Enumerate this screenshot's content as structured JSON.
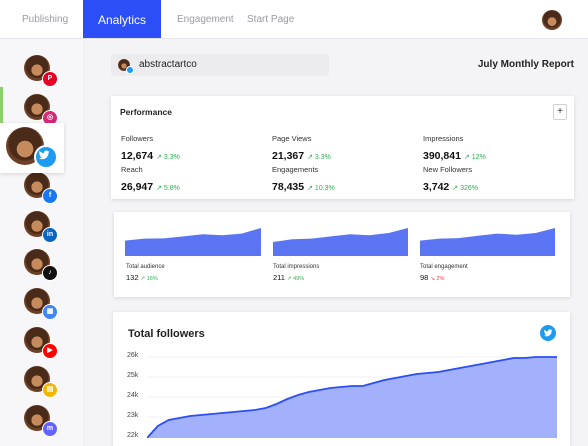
{
  "nav": {
    "tabs": [
      {
        "label": "Publishing",
        "active": false
      },
      {
        "label": "Analytics",
        "active": true
      },
      {
        "label": "Engagement",
        "active": false
      },
      {
        "label": "Start Page",
        "active": false
      }
    ]
  },
  "sidebar": {
    "accounts": [
      {
        "network": "pinterest",
        "icon": "pinterest-icon",
        "color": "#e60023",
        "glyph": "P"
      },
      {
        "network": "instagram",
        "icon": "instagram-icon",
        "color": "#d62976",
        "glyph": "◎"
      },
      {
        "network": "twitter",
        "icon": "twitter-icon",
        "color": "#1d9bf0",
        "glyph": "",
        "selected": true
      },
      {
        "network": "facebook",
        "icon": "facebook-icon",
        "color": "#1877f2",
        "glyph": "f"
      },
      {
        "network": "linkedin",
        "icon": "linkedin-icon",
        "color": "#0a66c2",
        "glyph": "in"
      },
      {
        "network": "tiktok",
        "icon": "tiktok-icon",
        "color": "#111111",
        "glyph": "♪"
      },
      {
        "network": "google-business",
        "icon": "google-business-icon",
        "color": "#4285f4",
        "glyph": "▦"
      },
      {
        "network": "youtube",
        "icon": "youtube-icon",
        "color": "#ff0000",
        "glyph": "▶"
      },
      {
        "network": "shopify",
        "icon": "shopify-icon",
        "color": "#f2b705",
        "glyph": "▤"
      },
      {
        "network": "mastodon",
        "icon": "mastodon-icon",
        "color": "#6364ff",
        "glyph": "m"
      }
    ]
  },
  "profile": {
    "name": "abstractartco"
  },
  "report": {
    "title": "July Monthly Report"
  },
  "performance": {
    "title": "Performance",
    "add_label": "+",
    "metrics": [
      {
        "label": "Followers",
        "value": "12,674",
        "change": "↗ 3.3%"
      },
      {
        "label": "Page Views",
        "value": "21,367",
        "change": "↗ 3.3%"
      },
      {
        "label": "Impressions",
        "value": "390,841",
        "change": "↗ 12%"
      },
      {
        "label": "Reach",
        "value": "26,947",
        "change": "↗ 5.8%"
      },
      {
        "label": "Engagements",
        "value": "78,435",
        "change": "↗ 10.3%"
      },
      {
        "label": "New Followers",
        "value": "3,742",
        "change": "↗ 326%"
      }
    ]
  },
  "mini_charts": [
    {
      "label": "Total audience",
      "value": "132",
      "change": "↗ 16%",
      "trend": "up",
      "points": [
        0.55,
        0.62,
        0.63,
        0.7,
        0.78,
        0.74,
        0.8,
        1.0
      ]
    },
    {
      "label": "Total impressions",
      "value": "211",
      "change": "↗ 49%",
      "trend": "up",
      "points": [
        0.5,
        0.6,
        0.62,
        0.7,
        0.78,
        0.74,
        0.82,
        1.0
      ]
    },
    {
      "label": "Total engagement",
      "value": "98",
      "change": "↘ 2%",
      "trend": "down",
      "points": [
        0.55,
        0.62,
        0.64,
        0.72,
        0.8,
        0.76,
        0.82,
        1.0
      ]
    }
  ],
  "chart_data": {
    "type": "area",
    "title": "Total followers",
    "icon": "twitter-icon",
    "color": "#2b4ef6",
    "fill": "#a3b0fb",
    "yticks": [
      "26k",
      "25k",
      "24k",
      "23k",
      "22k"
    ],
    "ylim": [
      22000,
      26000
    ],
    "values": [
      22000,
      22600,
      22900,
      23000,
      23100,
      23150,
      23200,
      23250,
      23300,
      23350,
      23400,
      23500,
      23700,
      23950,
      24150,
      24300,
      24400,
      24500,
      24550,
      24600,
      24600,
      24750,
      24900,
      25000,
      25100,
      25200,
      25250,
      25300,
      25400,
      25500,
      25600,
      25700,
      25800,
      25900,
      26000,
      26000,
      26050,
      26050,
      26050
    ]
  }
}
